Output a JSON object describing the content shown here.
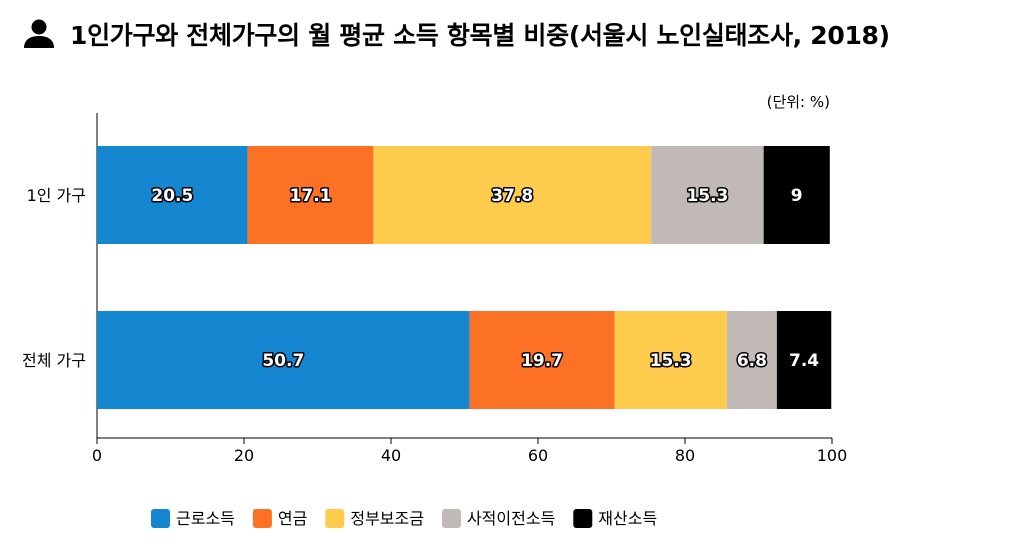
{
  "title": "1인가구와 전체가구의 월 평균 소득 항목별 비중(서울시 노인실태조사, 2018)",
  "title_icon": "person-icon",
  "unit_note": "(단위: %)",
  "chart_data": {
    "type": "bar",
    "orientation": "horizontal",
    "stacked": true,
    "title": "1인가구와 전체가구의 월 평균 소득 항목별 비중(서울시 노인실태조사, 2018)",
    "categories": [
      "1인 가구",
      "전체 가구"
    ],
    "series": [
      {
        "name": "근로소득",
        "color": "#1487d0",
        "values": [
          20.5,
          50.7
        ]
      },
      {
        "name": "연금",
        "color": "#fd7124",
        "values": [
          17.1,
          19.7
        ]
      },
      {
        "name": "정부보조금",
        "color": "#fecb4d",
        "values": [
          37.8,
          15.3
        ]
      },
      {
        "name": "사적이전소득",
        "color": "#c0b9b5",
        "values": [
          15.3,
          6.8
        ]
      },
      {
        "name": "재산소득",
        "color": "#000000",
        "values": [
          9,
          7.4
        ]
      }
    ],
    "xlim": [
      0,
      100
    ],
    "xticks": [
      0,
      20,
      40,
      60,
      80,
      100
    ],
    "grid": false,
    "legend": "bottom"
  }
}
